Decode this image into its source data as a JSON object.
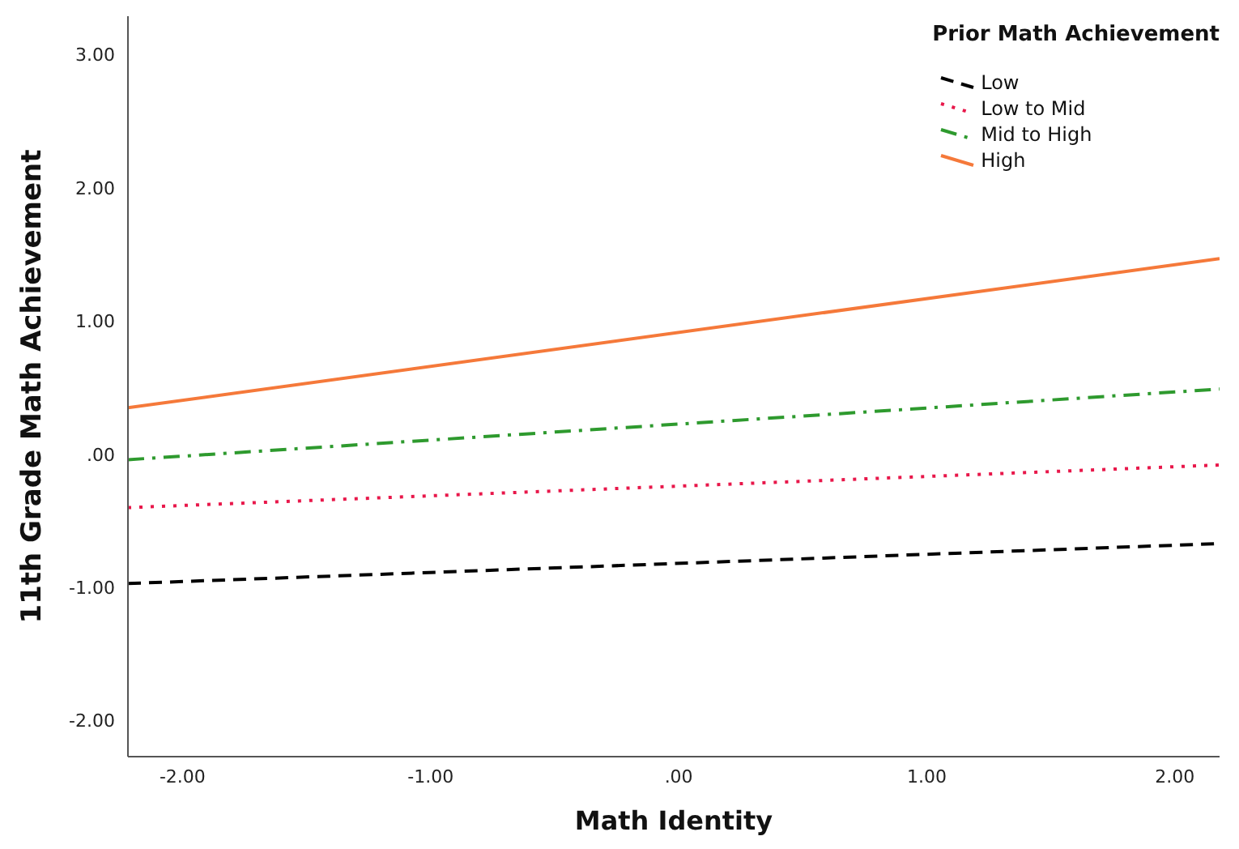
{
  "chart_data": {
    "type": "line",
    "xlabel": "Math Identity",
    "ylabel": "11th Grade Math Achievement",
    "legend_title": "Prior Math Achievement",
    "legend": "top right",
    "grid": false,
    "marker": "none",
    "x": [
      -2.22,
      2.18
    ],
    "xlim": [
      -2.22,
      2.18
    ],
    "xticks": [
      {
        "value": -2,
        "label": "-2.00"
      },
      {
        "value": -1,
        "label": "-1.00"
      },
      {
        "value": 0,
        "label": ".00"
      },
      {
        "value": 1,
        "label": "1.00"
      },
      {
        "value": 2,
        "label": "2.00"
      }
    ],
    "ylim": [
      -2.27,
      3.29
    ],
    "yticks": [
      {
        "value": -2,
        "label": "-2.00"
      },
      {
        "value": -1,
        "label": "-1.00"
      },
      {
        "value": 0,
        "label": ".00"
      },
      {
        "value": 1,
        "label": "1.00"
      },
      {
        "value": 2,
        "label": "2.00"
      },
      {
        "value": 3,
        "label": "3.00"
      }
    ],
    "series": [
      {
        "name": "Low",
        "color": "#000000",
        "line_style": "dashed",
        "values": [
          -0.97,
          -0.67
        ]
      },
      {
        "name": "Low to Mid",
        "color": "#e8174a",
        "line_style": "dotted",
        "values": [
          -0.4,
          -0.08
        ]
      },
      {
        "name": "Mid to High",
        "color": "#2e9a2e",
        "line_style": "dashdot",
        "values": [
          -0.04,
          0.49
        ]
      },
      {
        "name": "High",
        "color": "#f5793a",
        "line_style": "solid",
        "values": [
          0.35,
          1.47
        ]
      }
    ]
  }
}
